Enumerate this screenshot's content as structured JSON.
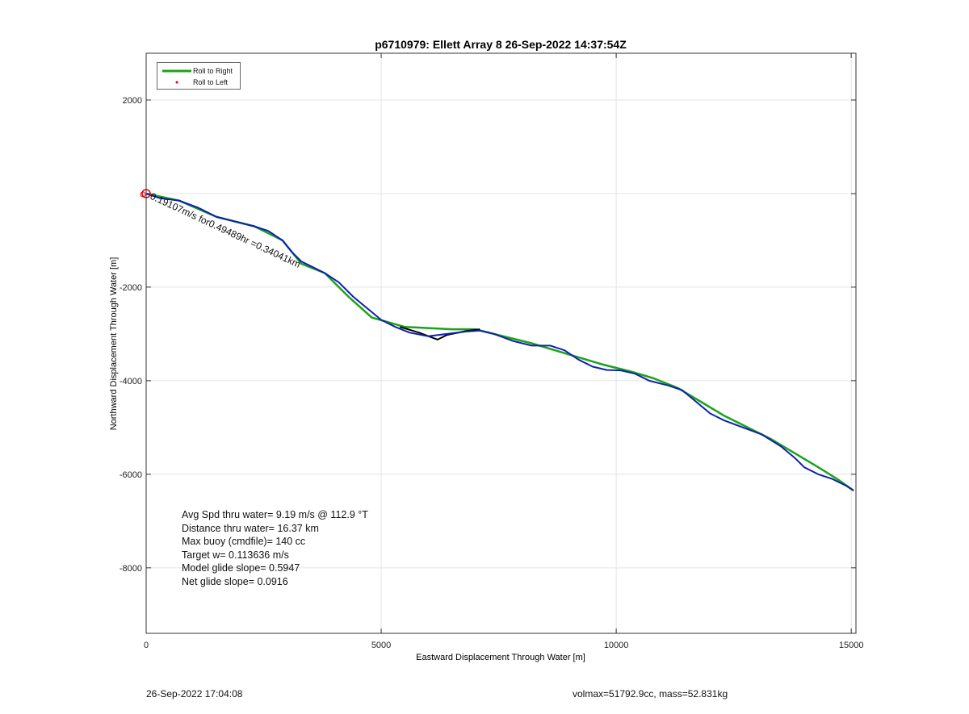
{
  "chart_data": {
    "type": "line",
    "title": "p6710979: Ellett Array 8 26-Sep-2022 14:37:54Z",
    "xlabel": "Eastward Displacement Through Water [m]",
    "ylabel": "Northward Displacement Through Water [m]",
    "xlim": [
      0,
      15100
    ],
    "ylim": [
      -9400,
      3000
    ],
    "xticks": [
      0,
      5000,
      10000,
      15000
    ],
    "xtick_labels": [
      "0",
      "5000",
      "10000",
      "15000"
    ],
    "yticks": [
      2000,
      -2000,
      -4000,
      -6000,
      -8000
    ],
    "ytick_labels": [
      "2000",
      "-2000",
      "-4000",
      "-6000",
      "-8000"
    ],
    "grid": true,
    "legend": {
      "placement": "top-left",
      "entries": [
        {
          "label": "Roll to Right",
          "color": "#1aa31a",
          "style": "line"
        },
        {
          "label": "Roll to Left",
          "color": "#e00000",
          "style": "dot"
        }
      ]
    },
    "series": [
      {
        "name": "Roll to Right",
        "color": "#1aa31a",
        "x": [
          0,
          700,
          1500,
          2300,
          2900,
          3300,
          3800,
          4300,
          4800,
          5500,
          6500,
          7000,
          7600,
          8200,
          8700,
          9200,
          9700,
          10300,
          10800,
          11300,
          11800,
          12300,
          12800,
          13300,
          13800,
          14300,
          14700,
          15050
        ],
        "y": [
          0,
          -150,
          -500,
          -700,
          -1000,
          -1500,
          -1700,
          -2200,
          -2650,
          -2850,
          -2900,
          -2900,
          -3050,
          -3200,
          -3350,
          -3500,
          -3650,
          -3800,
          -3950,
          -4150,
          -4450,
          -4750,
          -5000,
          -5250,
          -5550,
          -5850,
          -6100,
          -6350
        ]
      },
      {
        "name": "",
        "color": "#000000",
        "x": [
          5400,
          5800,
          6200,
          6400,
          6800,
          7100
        ],
        "y": [
          -2850,
          -2970,
          -3120,
          -3020,
          -2940,
          -2900
        ]
      },
      {
        "name": "",
        "color": "#1020b0",
        "x": [
          0,
          300,
          700,
          1100,
          1500,
          1900,
          2300,
          2600,
          2900,
          3100,
          3300,
          3500,
          3800,
          4100,
          4400,
          4700,
          5000,
          5300,
          5600,
          6000,
          6400,
          6800,
          7100,
          7400,
          7800,
          8200,
          8600,
          8900,
          9200,
          9500,
          9800,
          10100,
          10400,
          10700,
          11100,
          11400,
          11700,
          12000,
          12300,
          12700,
          13100,
          13500,
          13800,
          14000,
          14300,
          14600,
          14900,
          15050
        ],
        "y": [
          0,
          -100,
          -150,
          -300,
          -500,
          -600,
          -700,
          -800,
          -1000,
          -1250,
          -1450,
          -1550,
          -1700,
          -1900,
          -2200,
          -2450,
          -2700,
          -2850,
          -2970,
          -3050,
          -3000,
          -2950,
          -2930,
          -3000,
          -3150,
          -3250,
          -3250,
          -3350,
          -3550,
          -3700,
          -3770,
          -3780,
          -3850,
          -4000,
          -4100,
          -4200,
          -4450,
          -4700,
          -4850,
          -5000,
          -5150,
          -5400,
          -5650,
          -5850,
          -6000,
          -6100,
          -6250,
          -6350
        ]
      }
    ],
    "annotations": [
      {
        "text": "0.19107m/s for0.49489hr =0.34041km",
        "x": 0,
        "y": 0,
        "angle_deg": -25
      }
    ],
    "markers": [
      {
        "label": "start-circle",
        "x": 0,
        "y": 0,
        "color": "#e00000"
      }
    ]
  },
  "stats": {
    "avg_speed": "Avg Spd thru water=  9.19 m/s @ 112.9 °T",
    "distance": "Distance thru water= 16.37 km",
    "max_buoy": "Max buoy (cmdfile)= 140 cc",
    "target_w": "Target w= 0.113636 m/s",
    "model_glide": "Model glide slope= 0.5947",
    "net_glide": "Net glide slope= 0.0916"
  },
  "footer": {
    "timestamp": "26-Sep-2022 17:04:08",
    "volmax_mass": "volmax=51792.9cc, mass=52.831kg"
  }
}
